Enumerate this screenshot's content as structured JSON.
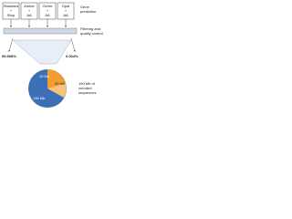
{
  "boxes": [
    {
      "line1": "Standard",
      "line2": "+",
      "line3": "Stop"
    },
    {
      "line1": "Amber",
      "line2": "+",
      "line3": "AA"
    },
    {
      "line1": "Ochre",
      "line2": "+",
      "line3": "AA"
    },
    {
      "line1": "Opal",
      "line2": "+",
      "line3": "AA"
    }
  ],
  "steps": {
    "prediction": [
      "Gene",
      "prediction"
    ],
    "filtering": [
      "Filtering and",
      "quality control"
    ]
  },
  "split": {
    "left": "99.908%",
    "right": "0.004%"
  },
  "pie": {
    "labels": [
      "15 Mb",
      "30 Mb",
      "136 Mb"
    ]
  },
  "result": [
    "190 Mb of",
    "recoded",
    "sequences"
  ]
}
